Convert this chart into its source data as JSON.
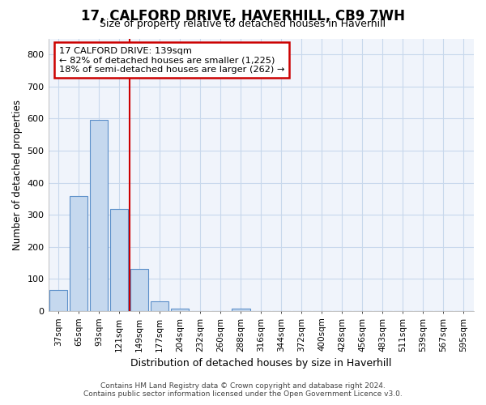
{
  "title": "17, CALFORD DRIVE, HAVERHILL, CB9 7WH",
  "subtitle": "Size of property relative to detached houses in Haverhill",
  "xlabel": "Distribution of detached houses by size in Haverhill",
  "ylabel": "Number of detached properties",
  "categories": [
    "37sqm",
    "65sqm",
    "93sqm",
    "121sqm",
    "149sqm",
    "177sqm",
    "204sqm",
    "232sqm",
    "260sqm",
    "288sqm",
    "316sqm",
    "344sqm",
    "372sqm",
    "400sqm",
    "428sqm",
    "456sqm",
    "483sqm",
    "511sqm",
    "539sqm",
    "567sqm",
    "595sqm"
  ],
  "values": [
    65,
    358,
    595,
    318,
    130,
    30,
    8,
    0,
    0,
    8,
    0,
    0,
    0,
    0,
    0,
    0,
    0,
    0,
    0,
    0,
    0
  ],
  "bar_color": "#c5d8ee",
  "bar_edge_color": "#5b8fc9",
  "annotation_title": "17 CALFORD DRIVE: 139sqm",
  "annotation_line1": "← 82% of detached houses are smaller (1,225)",
  "annotation_line2": "18% of semi-detached houses are larger (262) →",
  "annotation_box_color": "#ffffff",
  "annotation_box_edge": "#cc0000",
  "vline_color": "#cc0000",
  "grid_color": "#c8d8ec",
  "ylim": [
    0,
    850
  ],
  "yticks": [
    0,
    100,
    200,
    300,
    400,
    500,
    600,
    700,
    800
  ],
  "footer_line1": "Contains HM Land Registry data © Crown copyright and database right 2024.",
  "footer_line2": "Contains public sector information licensed under the Open Government Licence v3.0.",
  "bg_color": "#ffffff",
  "plot_bg_color": "#f0f4fb"
}
